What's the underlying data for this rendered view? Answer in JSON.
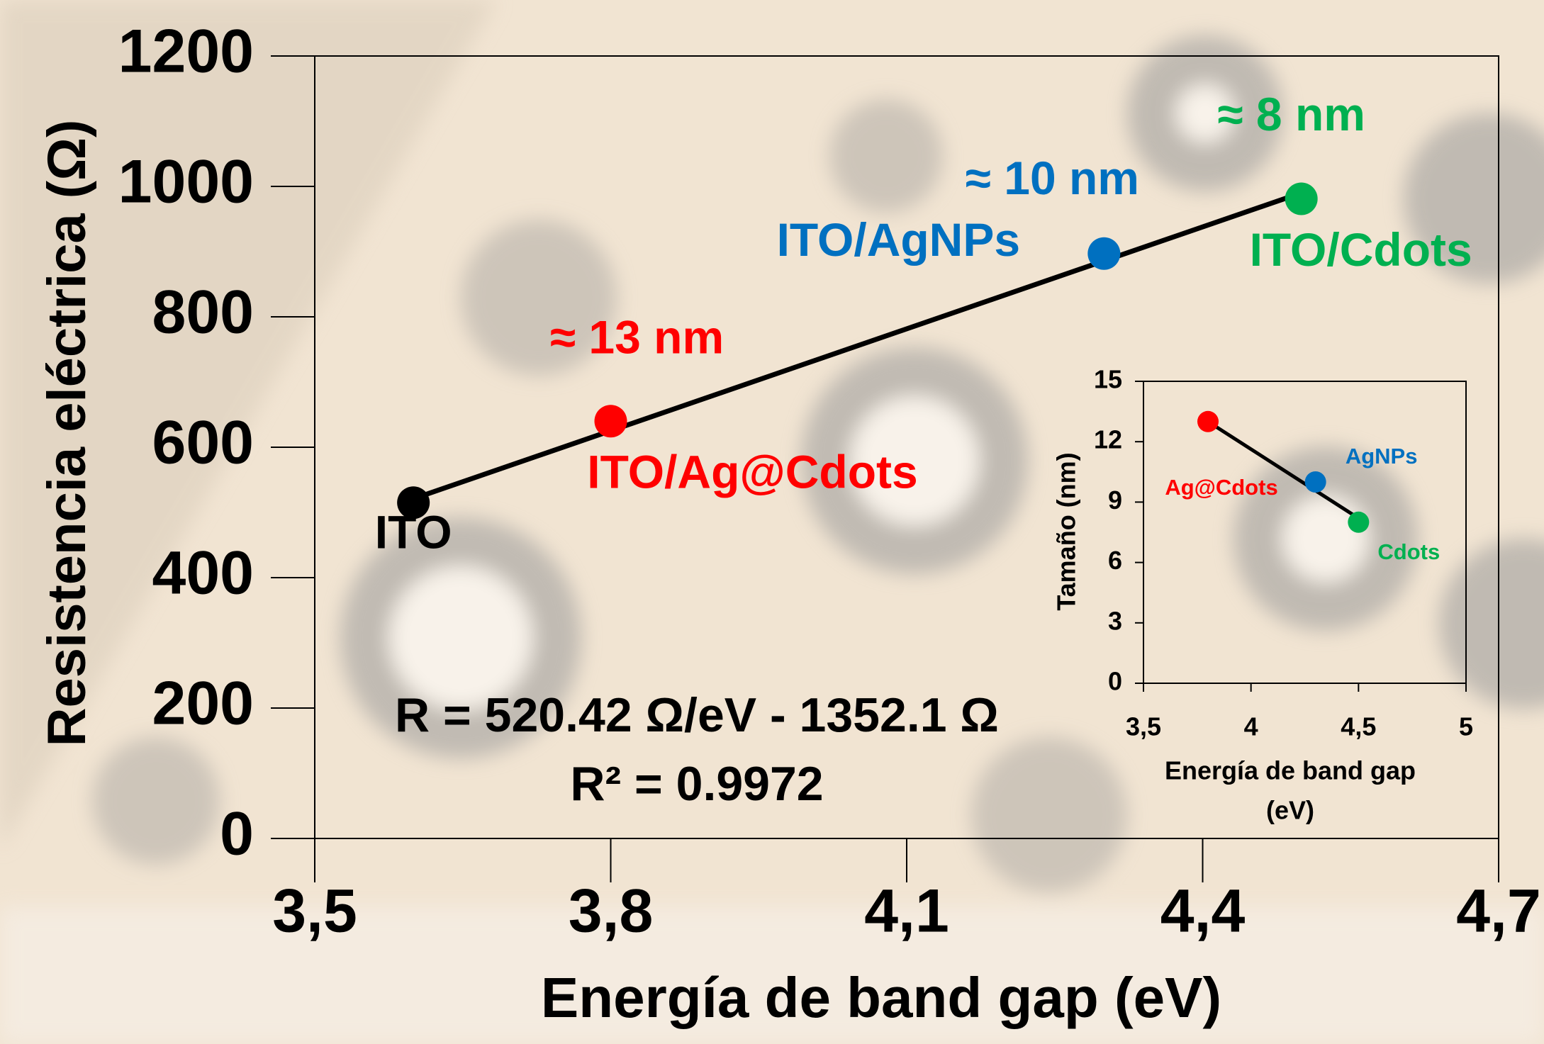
{
  "chart_data": [
    {
      "type": "scatter",
      "xlabel": "Energía de band gap (eV)",
      "ylabel": "Resistencia eléctrica (Ω)",
      "xlim": [
        3.5,
        4.7
      ],
      "xticks": [
        {
          "value": 3.5,
          "label": "3,5"
        },
        {
          "value": 3.8,
          "label": "3,8"
        },
        {
          "value": 4.1,
          "label": "4,1"
        },
        {
          "value": 4.4,
          "label": "4,4"
        },
        {
          "value": 4.7,
          "label": "4,7"
        }
      ],
      "ylim": [
        0,
        1200
      ],
      "yticks": [
        0,
        200,
        400,
        600,
        800,
        1000,
        1200
      ],
      "series": [
        {
          "name": "ITO",
          "color": "#000000",
          "x": [
            3.6
          ],
          "values": [
            515
          ]
        },
        {
          "name": "ITO/Ag@Cdots",
          "color": "#ff0000",
          "x": [
            3.8
          ],
          "values": [
            640
          ],
          "annotation": "≈ 13 nm"
        },
        {
          "name": "ITO/AgNPs",
          "color": "#0070c0",
          "x": [
            4.3
          ],
          "values": [
            897
          ],
          "annotation": "≈ 10 nm"
        },
        {
          "name": "ITO/Cdots",
          "color": "#00b050",
          "x": [
            4.5
          ],
          "values": [
            981
          ],
          "annotation": "≈ 8 nm"
        }
      ],
      "fit": {
        "color": "#000000",
        "x": [
          3.6,
          4.5
        ],
        "values": [
          521,
          990
        ]
      },
      "equation": [
        "R = 520.42 Ω/eV - 1352.1 Ω",
        "R² = 0.9972"
      ]
    },
    {
      "type": "scatter",
      "xlabel": [
        "Energía de band gap",
        "(eV)"
      ],
      "ylabel": "Tamaño (nm)",
      "xlim": [
        3.5,
        5
      ],
      "xticks": [
        {
          "value": 3.5,
          "label": "3,5"
        },
        4,
        {
          "value": 4.5,
          "label": "4,5"
        },
        5
      ],
      "ylim": [
        0,
        15
      ],
      "yticks": [
        0,
        3,
        6,
        9,
        12,
        15
      ],
      "series": [
        {
          "name": "Ag@Cdots",
          "color": "#ff0000",
          "x": [
            3.8
          ],
          "values": [
            13
          ]
        },
        {
          "name": "AgNPs",
          "color": "#0070c0",
          "x": [
            4.3
          ],
          "values": [
            10
          ]
        },
        {
          "name": "Cdots",
          "color": "#00b050",
          "x": [
            4.5
          ],
          "values": [
            8
          ]
        }
      ],
      "fit": {
        "color": "#000000",
        "x": [
          3.8,
          4.5
        ],
        "values": [
          13,
          8.2
        ]
      }
    }
  ]
}
